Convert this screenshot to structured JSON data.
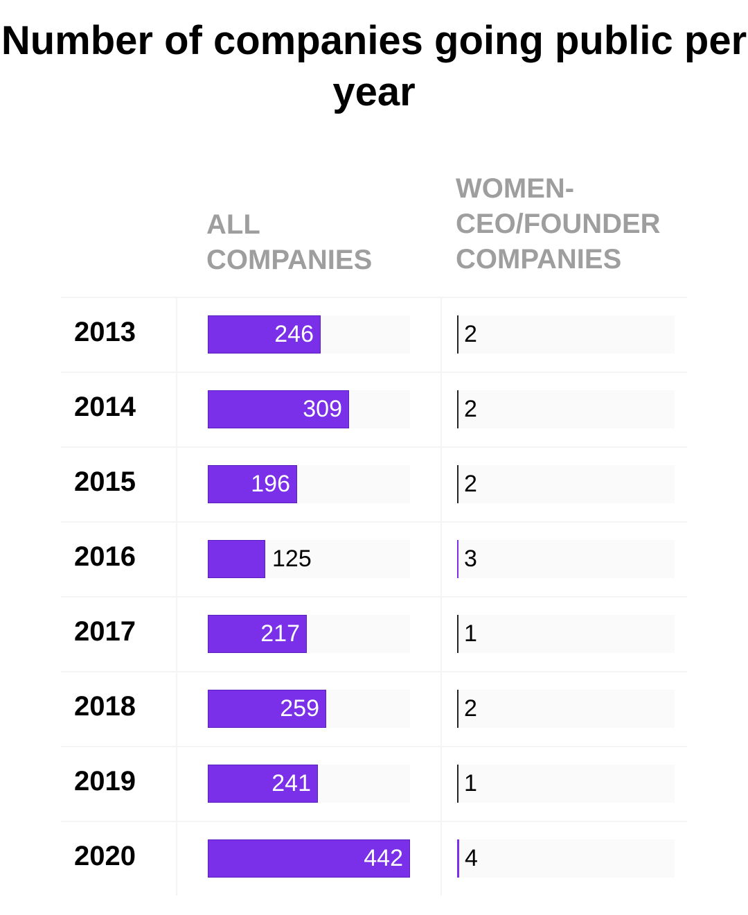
{
  "title": "Number of companies going public per year",
  "column_headers": {
    "all": "ALL\nCOMPANIES",
    "women": "WOMEN-\nCEO/FOUNDER\nCOMPANIES"
  },
  "colors": {
    "bar": "#7a2fe8",
    "women_bar": "#7a2fe8",
    "women_zero_line": "#222222",
    "track": "#fafafa",
    "header_text": "#9e9e9e"
  },
  "chart_data": {
    "type": "bar",
    "orientation": "horizontal",
    "title": "Number of companies going public per year",
    "categories": [
      "2013",
      "2014",
      "2015",
      "2016",
      "2017",
      "2018",
      "2019",
      "2020"
    ],
    "series": [
      {
        "name": "ALL COMPANIES",
        "values": [
          246,
          309,
          196,
          125,
          217,
          259,
          241,
          442
        ],
        "xlim": [
          0,
          442
        ]
      },
      {
        "name": "WOMEN-CEO/FOUNDER COMPANIES",
        "values": [
          2,
          2,
          2,
          3,
          1,
          2,
          1,
          4
        ],
        "xlim": [
          0,
          442
        ]
      }
    ]
  }
}
